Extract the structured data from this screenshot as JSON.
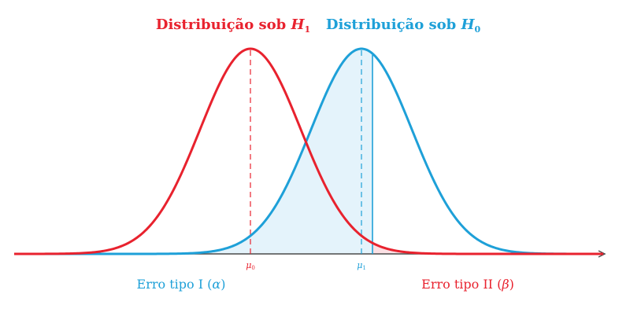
{
  "colors": {
    "h1": "#e8222e",
    "h0": "#1ea0d8",
    "alpha_fill": "#e4f3fb",
    "beta_fill": "#fbe0e4",
    "axis": "#4a4a4a"
  },
  "titles": {
    "h1": {
      "prefix": "Distribuição sob ",
      "symbol": "H",
      "sub": "1"
    },
    "h0": {
      "prefix": "Distribuição sob ",
      "symbol": "H",
      "sub": "0"
    }
  },
  "ticks": {
    "mu0": {
      "symbol": "μ",
      "sub": "0"
    },
    "mu1": {
      "symbol": "μ",
      "sub": "1"
    }
  },
  "errors": {
    "type1": {
      "prefix": "Erro tipo I (",
      "symbol": "α",
      "suffix": ")"
    },
    "type2": {
      "prefix": "Erro tipo II (",
      "symbol": "β",
      "suffix": ")"
    }
  }
}
